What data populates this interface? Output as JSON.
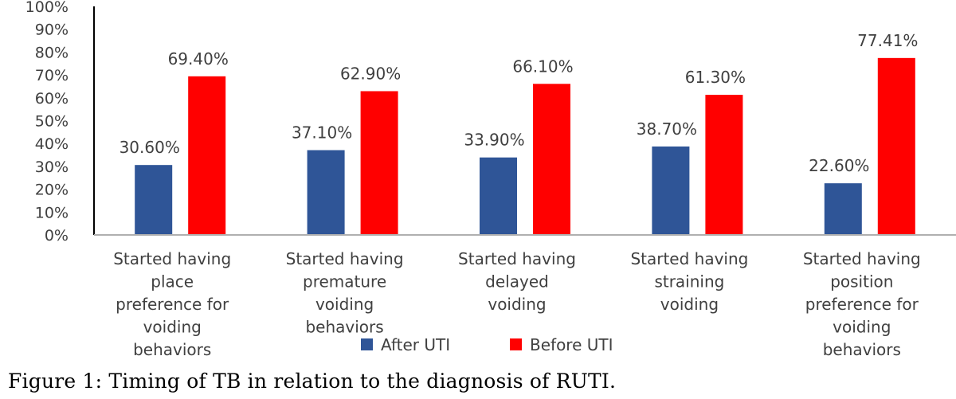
{
  "chart_data": {
    "type": "bar",
    "categories": [
      [
        "Started having",
        "place",
        "preference for",
        "voiding",
        "behaviors"
      ],
      [
        "Started having",
        "premature",
        "voiding",
        "behaviors"
      ],
      [
        "Started having",
        "delayed",
        "voiding"
      ],
      [
        "Started having",
        "straining",
        "voiding"
      ],
      [
        "Started having",
        "position",
        "preference for",
        "voiding",
        "behaviors"
      ]
    ],
    "series": [
      {
        "name": "After UTI",
        "color": "#2F5597",
        "values": [
          30.6,
          37.1,
          33.9,
          38.7,
          22.6
        ],
        "labels": [
          "30.60%",
          "37.10%",
          "33.90%",
          "38.70%",
          "22.60%"
        ]
      },
      {
        "name": "Before UTI",
        "color": "#FF0000",
        "values": [
          69.4,
          62.9,
          66.1,
          61.3,
          77.41
        ],
        "labels": [
          "69.40%",
          "62.90%",
          "66.10%",
          "61.30%",
          "77.41%"
        ]
      }
    ],
    "yticks": [
      "0%",
      "10%",
      "20%",
      "30%",
      "40%",
      "50%",
      "60%",
      "70%",
      "80%",
      "90%",
      "100%"
    ],
    "ylim": [
      0,
      100
    ],
    "grid": false,
    "legend_position": "bottom"
  },
  "caption": "Figure 1: Timing of TB in relation to the diagnosis of RUTI."
}
